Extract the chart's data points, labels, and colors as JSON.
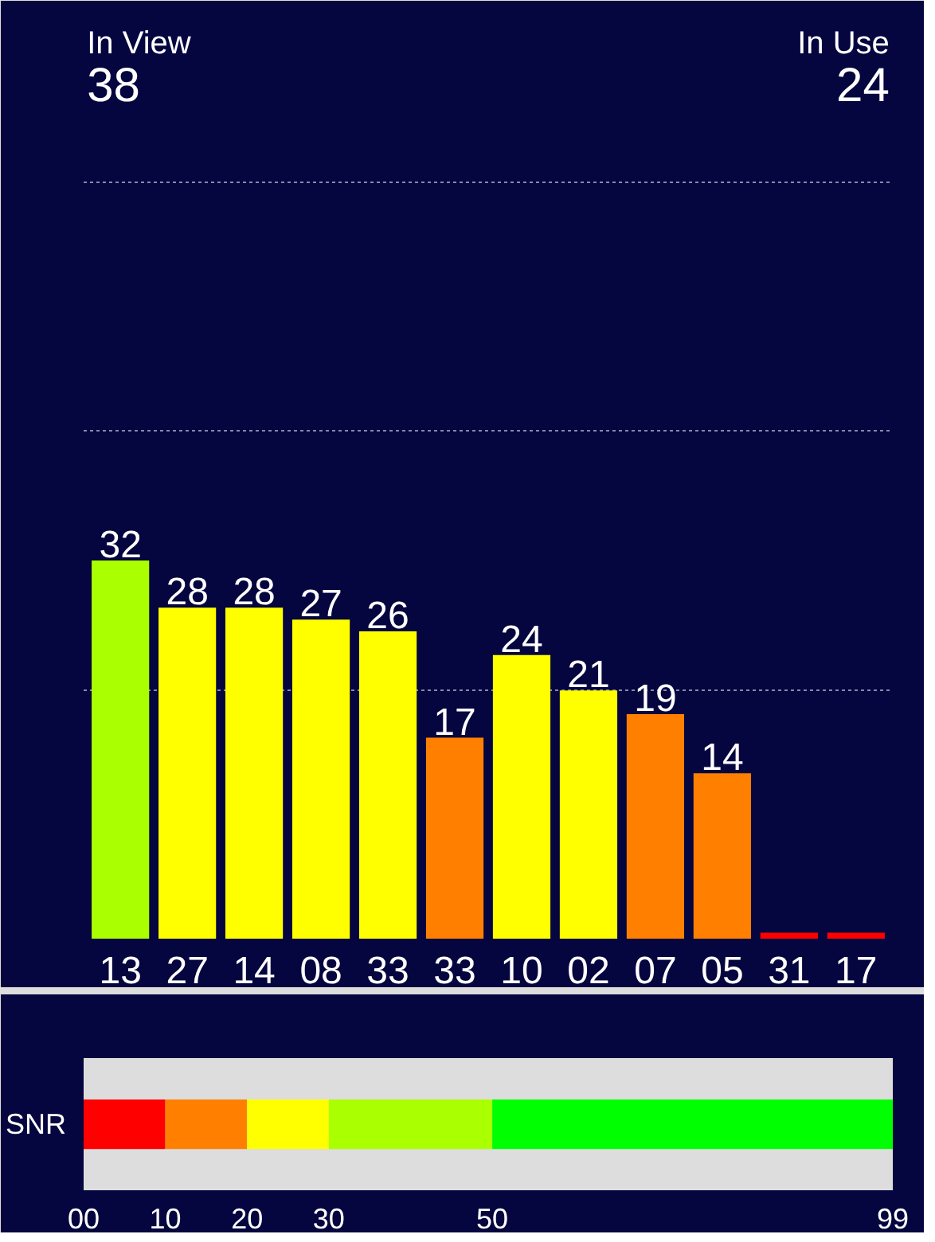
{
  "chart_data": [
    {
      "type": "bar",
      "annotations": [
        "In View",
        "38",
        "In Use",
        "24"
      ],
      "categories": [
        "13",
        "27",
        "14",
        "08",
        "33",
        "33",
        "10",
        "02",
        "07",
        "05",
        "31",
        "17"
      ],
      "values": [
        32,
        28,
        28,
        27,
        26,
        17,
        24,
        21,
        19,
        14,
        0.5,
        0.5
      ],
      "value_labels": [
        "32",
        "28",
        "28",
        "27",
        "26",
        "17",
        "24",
        "21",
        "19",
        "14",
        null,
        null
      ],
      "colors": [
        "#aaff00",
        "#ffff00",
        "#ffff00",
        "#ffff00",
        "#ffff00",
        "#ff8000",
        "#ffff00",
        "#ffff00",
        "#ff8000",
        "#ff8000",
        "#ff0000",
        "#ff0000"
      ],
      "ylim": [
        0,
        78
      ],
      "yticks": [
        {
          "value": 21,
          "label": null
        },
        {
          "value": 43,
          "label": null
        },
        {
          "value": 64,
          "label": null
        }
      ],
      "grid": "y",
      "tick_labels": "x"
    },
    {
      "type": "bar",
      "orientation": "horizontal",
      "stacked": true,
      "ylabel": "SNR",
      "categories": [
        null
      ],
      "series": [
        {
          "color": "#ff0000",
          "values": [
            10
          ]
        },
        {
          "color": "#ff8000",
          "values": [
            10
          ]
        },
        {
          "color": "#ffff00",
          "values": [
            10
          ]
        },
        {
          "color": "#aaff00",
          "values": [
            20
          ]
        },
        {
          "color": "#00ff00",
          "values": [
            49
          ]
        }
      ],
      "xlim": [
        0,
        99
      ],
      "xticks": [
        {
          "value": 0,
          "label": "00"
        },
        10,
        20,
        30,
        50,
        99
      ],
      "tick_labels": "x"
    }
  ]
}
